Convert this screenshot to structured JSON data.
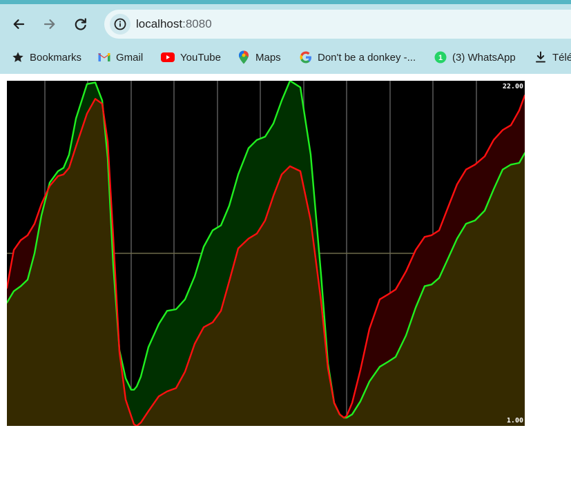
{
  "browser": {
    "address": {
      "host": "localhost",
      "port": ":8080"
    },
    "bookmarks": [
      {
        "label": "Bookmarks",
        "icon": "star-icon"
      },
      {
        "label": "Gmail",
        "icon": "gmail-icon"
      },
      {
        "label": "YouTube",
        "icon": "youtube-icon"
      },
      {
        "label": "Maps",
        "icon": "maps-icon"
      },
      {
        "label": "Don't be a donkey -...",
        "icon": "google-icon"
      },
      {
        "label": "(3) WhatsApp",
        "icon": "whatsapp-icon",
        "badge": "1"
      },
      {
        "label": "Télé",
        "icon": "download-icon"
      }
    ]
  },
  "chart_data": {
    "type": "area",
    "title": "",
    "xlabel": "",
    "ylabel": "",
    "ylim": [
      1.0,
      22.0
    ],
    "y_max_label": "22.00",
    "y_min_label": "1.00",
    "grid": true,
    "colors": {
      "background": "#000000",
      "grid": "#5a5a5a",
      "midline": "#6e6a4a",
      "base_fill": "#352a00",
      "green_above_fill": "#003000",
      "red_above_fill": "#300000"
    },
    "series": [
      {
        "name": "red",
        "color": "#ff1010",
        "x": [
          0,
          10,
          20,
          30,
          40,
          50,
          62,
          74,
          82,
          90,
          100,
          116,
          128,
          138,
          146,
          154,
          163,
          172,
          180,
          184,
          188,
          194,
          205,
          220,
          232,
          245,
          258,
          272,
          285,
          298,
          310,
          322,
          335,
          350,
          362,
          374,
          386,
          398,
          410,
          425,
          440,
          455,
          465,
          474,
          482,
          488,
          492,
          500,
          512,
          525,
          540,
          552,
          563,
          578,
          592,
          605,
          615,
          626,
          638,
          652,
          665,
          678,
          692,
          705,
          718,
          730,
          742,
          750
        ],
        "y": [
          9.4,
          11.7,
          12.3,
          12.6,
          13.3,
          14.5,
          15.6,
          16.2,
          16.3,
          16.7,
          18.0,
          20.0,
          20.9,
          20.6,
          18.3,
          12.5,
          5.5,
          2.6,
          1.6,
          1.1,
          1.0,
          1.2,
          1.9,
          2.8,
          3.1,
          3.3,
          4.3,
          6.0,
          7.0,
          7.3,
          8.0,
          9.8,
          11.8,
          12.4,
          12.7,
          13.5,
          15.0,
          16.3,
          16.8,
          16.5,
          13.5,
          8.6,
          4.5,
          2.4,
          1.7,
          1.5,
          1.6,
          2.4,
          4.4,
          6.9,
          8.7,
          9.0,
          9.3,
          10.4,
          11.7,
          12.5,
          12.6,
          12.9,
          14.2,
          15.7,
          16.6,
          16.9,
          17.4,
          18.4,
          19.0,
          19.3,
          20.2,
          21.1
        ]
      },
      {
        "name": "green",
        "color": "#20f020",
        "x": [
          0,
          10,
          20,
          30,
          40,
          50,
          62,
          74,
          82,
          90,
          100,
          116,
          128,
          138,
          146,
          154,
          163,
          172,
          180,
          184,
          188,
          194,
          205,
          220,
          232,
          245,
          258,
          272,
          285,
          298,
          310,
          322,
          335,
          350,
          362,
          374,
          386,
          398,
          410,
          425,
          440,
          455,
          465,
          474,
          482,
          488,
          492,
          500,
          512,
          525,
          540,
          552,
          563,
          578,
          592,
          605,
          615,
          626,
          638,
          652,
          665,
          678,
          692,
          705,
          718,
          730,
          742,
          750
        ],
        "y": [
          8.5,
          9.2,
          9.5,
          9.9,
          11.5,
          13.8,
          15.8,
          16.5,
          16.7,
          17.5,
          19.7,
          21.8,
          21.9,
          20.8,
          17.3,
          10.8,
          5.6,
          3.9,
          3.2,
          3.2,
          3.4,
          4.0,
          5.8,
          7.2,
          8.0,
          8.1,
          8.7,
          10.1,
          11.9,
          12.9,
          13.2,
          14.4,
          16.3,
          17.9,
          18.4,
          18.6,
          19.4,
          20.8,
          22.0,
          21.6,
          17.5,
          10.2,
          4.8,
          2.4,
          1.7,
          1.5,
          1.5,
          1.7,
          2.5,
          3.7,
          4.6,
          4.9,
          5.2,
          6.5,
          8.2,
          9.5,
          9.6,
          10.0,
          11.1,
          12.4,
          13.3,
          13.5,
          14.1,
          15.4,
          16.6,
          16.9,
          17.0,
          17.6
        ]
      }
    ]
  }
}
